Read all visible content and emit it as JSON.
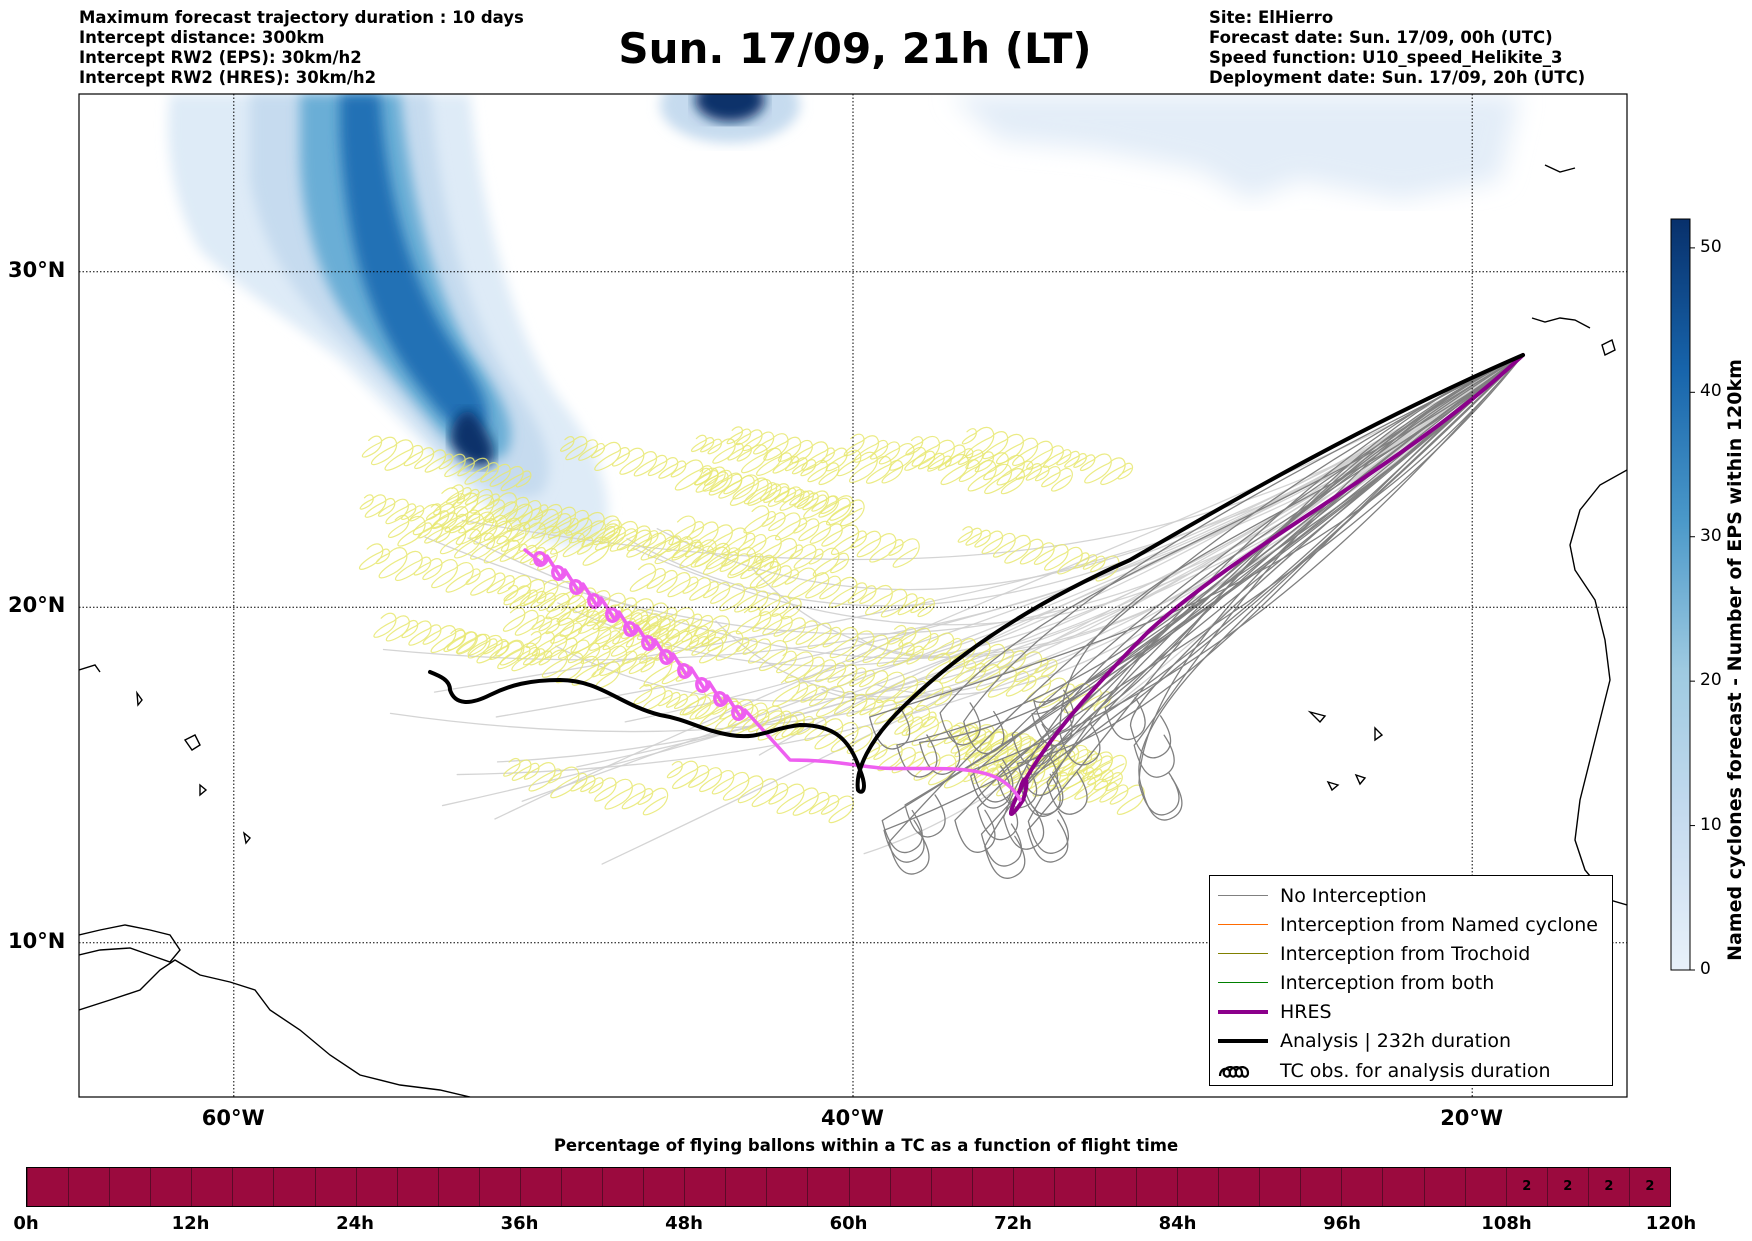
{
  "header_left": [
    "Maximum forecast trajectory duration : 10 days",
    "Intercept distance: 300km",
    "Intercept RW2 (EPS):  30km/h2",
    "Intercept RW2 (HRES): 30km/h2"
  ],
  "title": "Sun. 17/09, 21h (LT)",
  "header_right": [
    "Site: ElHierro",
    "Forecast date: Sun. 17/09, 00h (UTC)",
    "Speed function: U10_speed_Helikite_3",
    "Deployment date: Sun. 17/09, 20h (UTC)"
  ],
  "map": {
    "lat_labels": [
      "30°N",
      "20°N",
      "10°N"
    ],
    "lon_labels": [
      "60°W",
      "40°W",
      "20°W"
    ],
    "lat_values": [
      30,
      20,
      10
    ],
    "lon_values": [
      -60,
      -40,
      -20
    ],
    "extent": {
      "lon_min": -65,
      "lon_max": -15,
      "lat_min": 5.4,
      "lat_max": 35.3
    },
    "grid": true
  },
  "legend": {
    "items": [
      {
        "label": "No Interception",
        "color": "#808080",
        "style": "thin"
      },
      {
        "label": "Interception from Named cyclone",
        "color": "#ff6a00",
        "style": "thin"
      },
      {
        "label": "Interception from Trochoid",
        "color": "#808000",
        "style": "thin"
      },
      {
        "label": "Interception from both",
        "color": "#008000",
        "style": "thin"
      },
      {
        "label": "HRES",
        "color": "#8b008b",
        "style": "thick"
      },
      {
        "label": "Analysis | 232h duration",
        "color": "#000000",
        "style": "thick"
      },
      {
        "label": "TC obs. for analysis duration",
        "color": "#000000",
        "style": "loops"
      }
    ]
  },
  "colorbar": {
    "title": "Named cyclones forecast - Number of EPS within 120km",
    "ticks": [
      "50",
      "40",
      "30",
      "20",
      "10",
      "0"
    ],
    "tick_values": [
      50,
      40,
      30,
      20,
      10,
      0
    ],
    "min": 0,
    "max": 52,
    "color_low": "#e8f1fa",
    "color_high": "#08306b"
  },
  "flight_time_bar": {
    "title": "Percentage of flying ballons within a TC as a function of flight time",
    "tick_labels": [
      "0h",
      "12h",
      "24h",
      "36h",
      "48h",
      "60h",
      "72h",
      "84h",
      "96h",
      "108h",
      "120h"
    ],
    "tick_hours": [
      0,
      12,
      24,
      36,
      48,
      60,
      72,
      84,
      96,
      108,
      120
    ],
    "cell_hours": 3,
    "cell_values": [
      "",
      "",
      "",
      "",
      "",
      "",
      "",
      "",
      "",
      "",
      "",
      "",
      "",
      "",
      "",
      "",
      "",
      "",
      "",
      "",
      "",
      "",
      "",
      "",
      "",
      "",
      "",
      "",
      "",
      "",
      "",
      "",
      "",
      "",
      "",
      "",
      "2",
      "2",
      "2",
      "2"
    ],
    "color": "#9b0a3e"
  },
  "colors": {
    "no_interception": "#808080",
    "eps_light": "#cfcfcf",
    "trochoid_yellow": "#e8e870",
    "hres": "#8b008b",
    "tc_obs": "#ee5ff0",
    "analysis": "#000000"
  }
}
